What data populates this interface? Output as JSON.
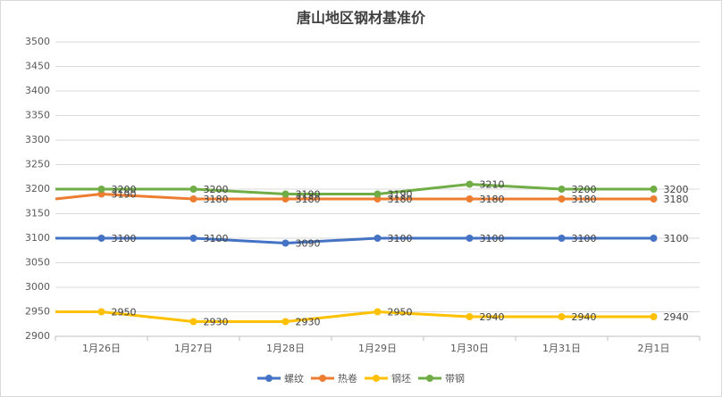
{
  "chart_data": {
    "type": "line",
    "title": "唐山地区钢材基准价",
    "categories": [
      null,
      "1月26日",
      "1月27日",
      "1月28日",
      "1月29日",
      "1月30日",
      "1月31日",
      "2月1日"
    ],
    "series": [
      {
        "name": "螺纹",
        "color": "#4472c4",
        "values": [
          3100,
          3100,
          3100,
          3090,
          3100,
          3100,
          3100,
          3100
        ]
      },
      {
        "name": "热卷",
        "color": "#ed7d31",
        "values": [
          3180,
          3190,
          3180,
          3180,
          3180,
          3180,
          3180,
          3180
        ]
      },
      {
        "name": "钢坯",
        "color": "#ffc000",
        "values": [
          2950,
          2950,
          2930,
          2930,
          2950,
          2940,
          2940,
          2940
        ]
      },
      {
        "name": "带钢",
        "color": "#70ad47",
        "values": [
          3200,
          3200,
          3200,
          3190,
          3190,
          3210,
          3200,
          3200
        ]
      }
    ],
    "ylim": [
      2900,
      3500
    ],
    "yticks": [
      2900,
      2950,
      3000,
      3050,
      3100,
      3150,
      3200,
      3250,
      3300,
      3350,
      3400,
      3450,
      3500
    ],
    "grid": true,
    "legend": "bottom"
  }
}
